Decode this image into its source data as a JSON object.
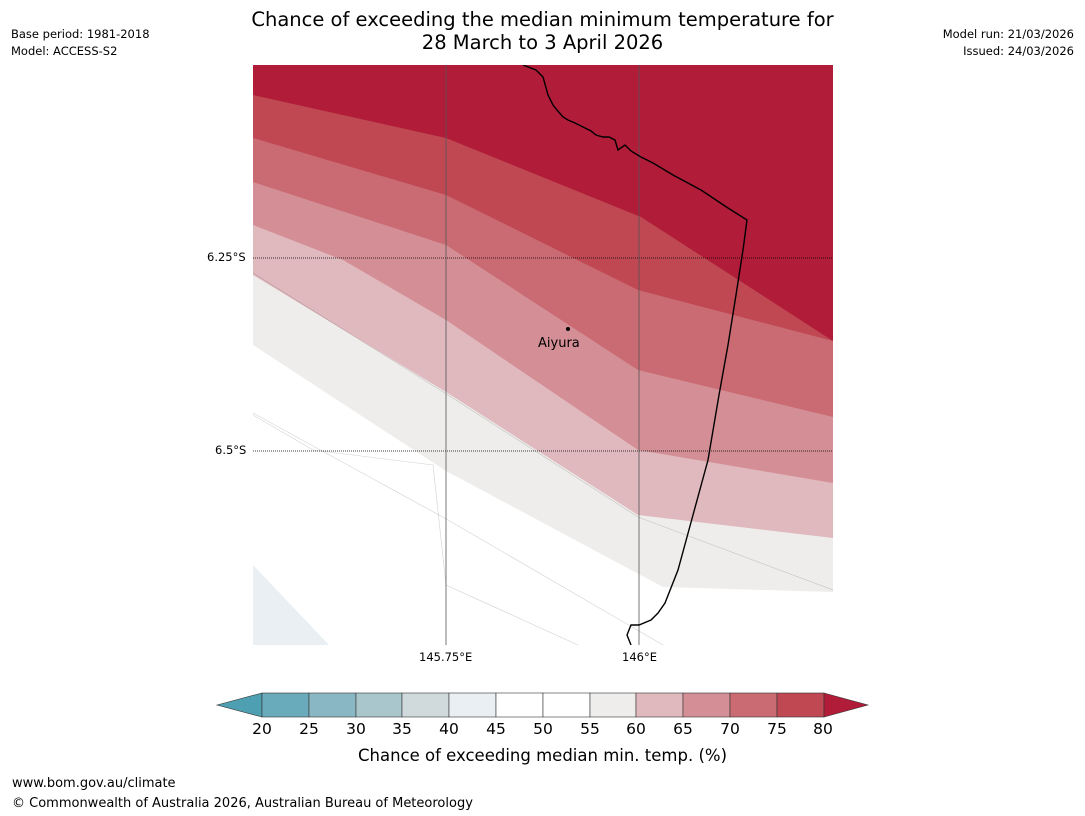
{
  "title": {
    "line1": "Chance of exceeding the median minimum temperature for",
    "line2": "28 March to 3 April 2026"
  },
  "meta_left": {
    "base_period": "Base period: 1981-2018",
    "model": "Model: ACCESS-S2"
  },
  "meta_right": {
    "model_run": "Model run: 21/03/2026",
    "issued": "Issued: 24/03/2026"
  },
  "map": {
    "place_label": "Aiyura",
    "lat_labels": [
      "6.25°S",
      "6.5°S"
    ],
    "lon_labels": [
      "145.75°E",
      "146°E"
    ]
  },
  "colorbar": {
    "label": "Chance of exceeding median min. temp. (%)",
    "ticks": [
      "20",
      "25",
      "30",
      "35",
      "40",
      "45",
      "50",
      "55",
      "60",
      "65",
      "70",
      "75",
      "80"
    ],
    "colors": {
      "below_20": "#4e9fb1",
      "20_25": "#6aabbb",
      "25_30": "#8ab7c4",
      "30_35": "#a8c6cc",
      "35_40": "#d0dadd",
      "40_45": "#e9eff2",
      "45_50": "#ffffff",
      "50_55": "#ffffff",
      "55_60": "#eeedeb",
      "60_65": "#e0b9be",
      "65_70": "#d48e95",
      "70_75": "#ca6b73",
      "75_80": "#bf4853",
      "above_80": "#b11c39"
    }
  },
  "footer": {
    "url": "www.bom.gov.au/climate",
    "copyright": "© Commonwealth of Australia 2026, Australian Bureau of Meteorology"
  }
}
